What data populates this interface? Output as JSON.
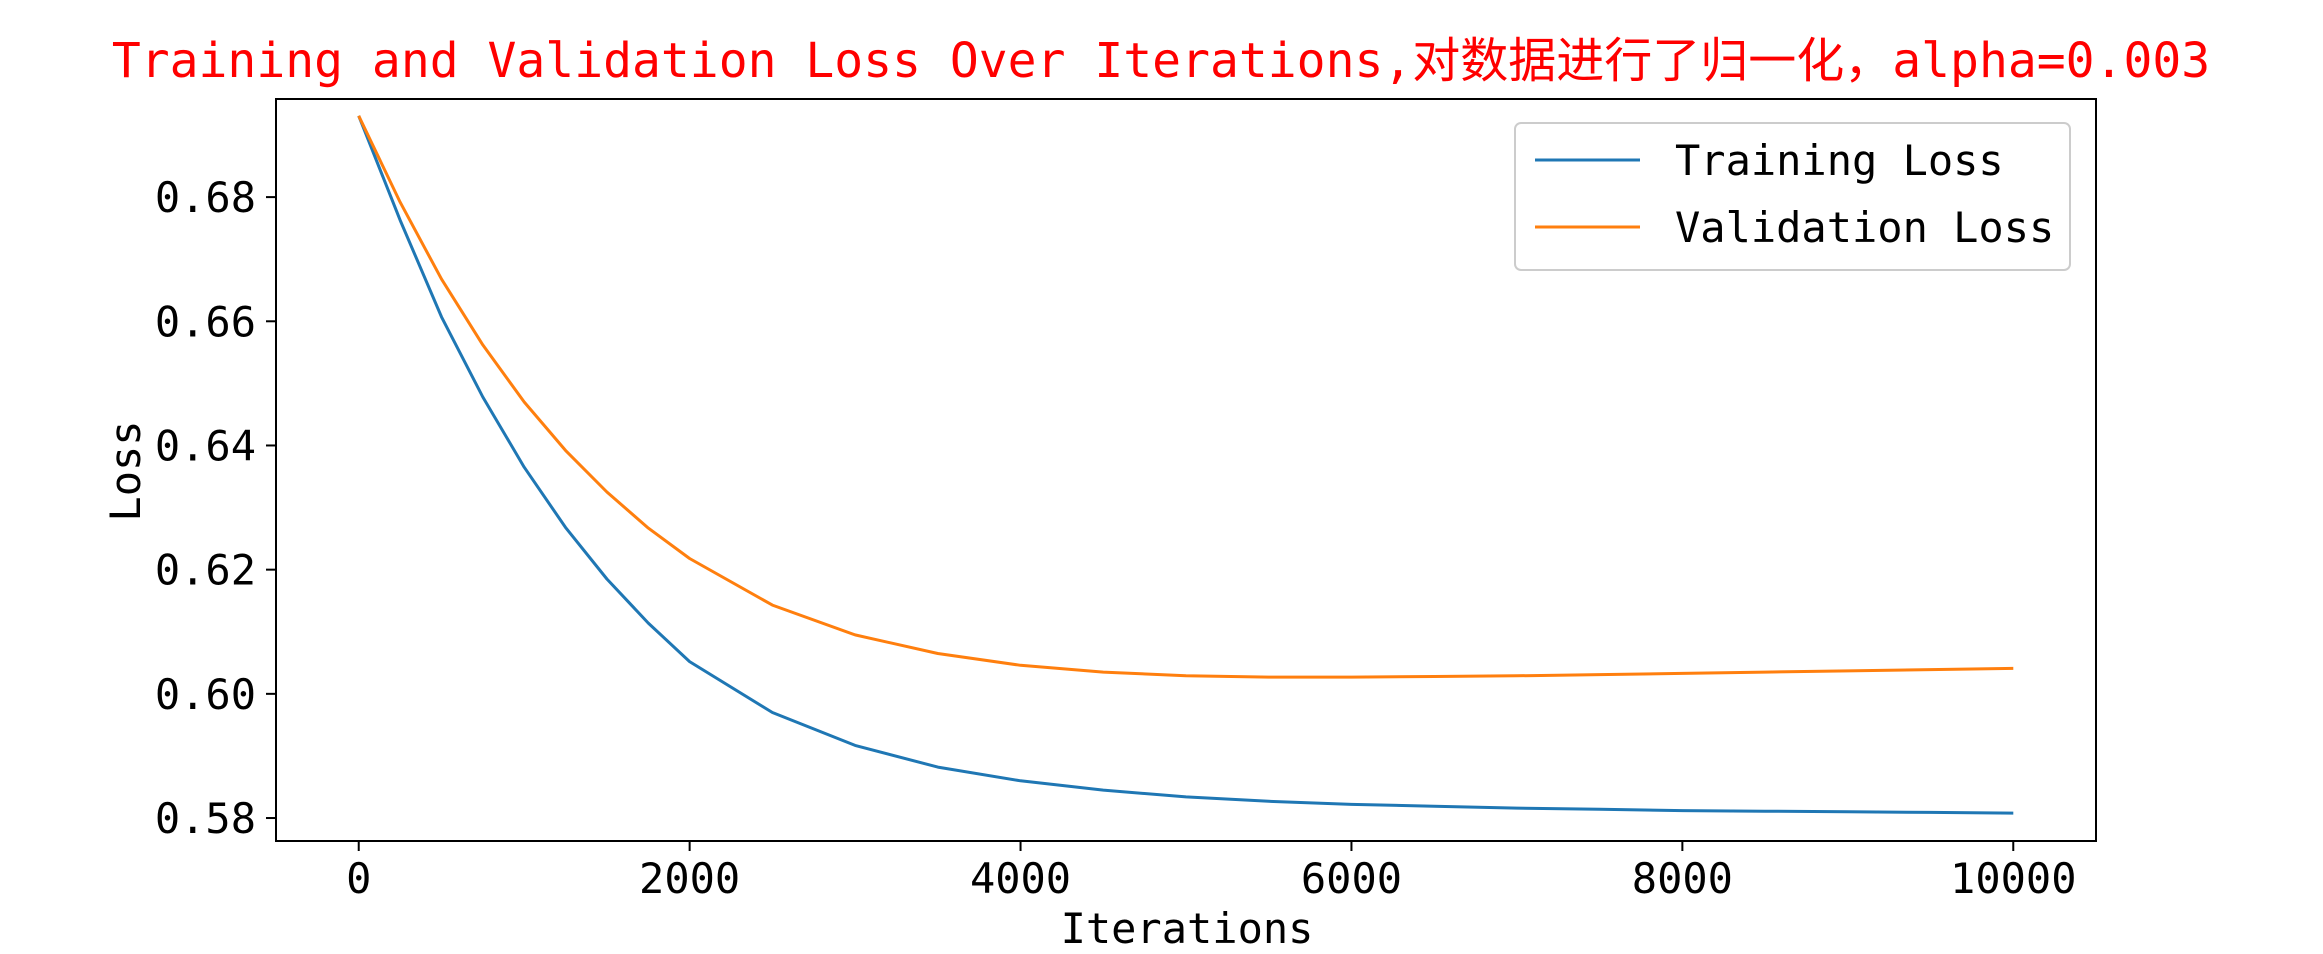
{
  "chart_data": {
    "type": "line",
    "title": "Training and Validation Loss Over Iterations,对数据进行了归一化，alpha=0.003",
    "title_color": "#ff0000",
    "xlabel": "Iterations",
    "ylabel": "Loss",
    "xlim": [
      -500,
      10500
    ],
    "ylim": [
      0.5763,
      0.6958
    ],
    "x_ticks": [
      0,
      2000,
      4000,
      6000,
      8000,
      10000
    ],
    "x_tick_labels": [
      "0",
      "2000",
      "4000",
      "6000",
      "8000",
      "10000"
    ],
    "y_ticks": [
      0.58,
      0.6,
      0.62,
      0.64,
      0.66,
      0.68
    ],
    "y_tick_labels": [
      "0.58",
      "0.60",
      "0.62",
      "0.64",
      "0.66",
      "0.68"
    ],
    "grid": false,
    "legend_position": "top-right",
    "series": [
      {
        "name": "Training Loss",
        "color": "#1f77b4",
        "x": [
          0,
          250,
          500,
          750,
          1000,
          1250,
          1500,
          1750,
          2000,
          2500,
          3000,
          3500,
          4000,
          4500,
          5000,
          5500,
          6000,
          6500,
          7000,
          7500,
          8000,
          8500,
          9000,
          9500,
          10000
        ],
        "y": [
          0.6931,
          0.6763,
          0.6607,
          0.6478,
          0.6365,
          0.6268,
          0.6185,
          0.6114,
          0.6052,
          0.597,
          0.5917,
          0.5882,
          0.586,
          0.5845,
          0.5834,
          0.5827,
          0.5822,
          0.5819,
          0.5816,
          0.5814,
          0.5812,
          0.5811,
          0.581,
          0.5809,
          0.5808
        ]
      },
      {
        "name": "Validation Loss",
        "color": "#ff7f0e",
        "x": [
          0,
          250,
          500,
          750,
          1000,
          1250,
          1500,
          1750,
          2000,
          2500,
          3000,
          3500,
          4000,
          4500,
          5000,
          5500,
          6000,
          6500,
          7000,
          7500,
          8000,
          8500,
          9000,
          9500,
          10000
        ],
        "y": [
          0.6931,
          0.6792,
          0.6668,
          0.6562,
          0.647,
          0.6392,
          0.6325,
          0.6267,
          0.6218,
          0.6143,
          0.6095,
          0.6065,
          0.6046,
          0.6035,
          0.6029,
          0.6027,
          0.6027,
          0.6028,
          0.6029,
          0.6031,
          0.6033,
          0.6035,
          0.6037,
          0.6039,
          0.6041
        ]
      }
    ]
  }
}
